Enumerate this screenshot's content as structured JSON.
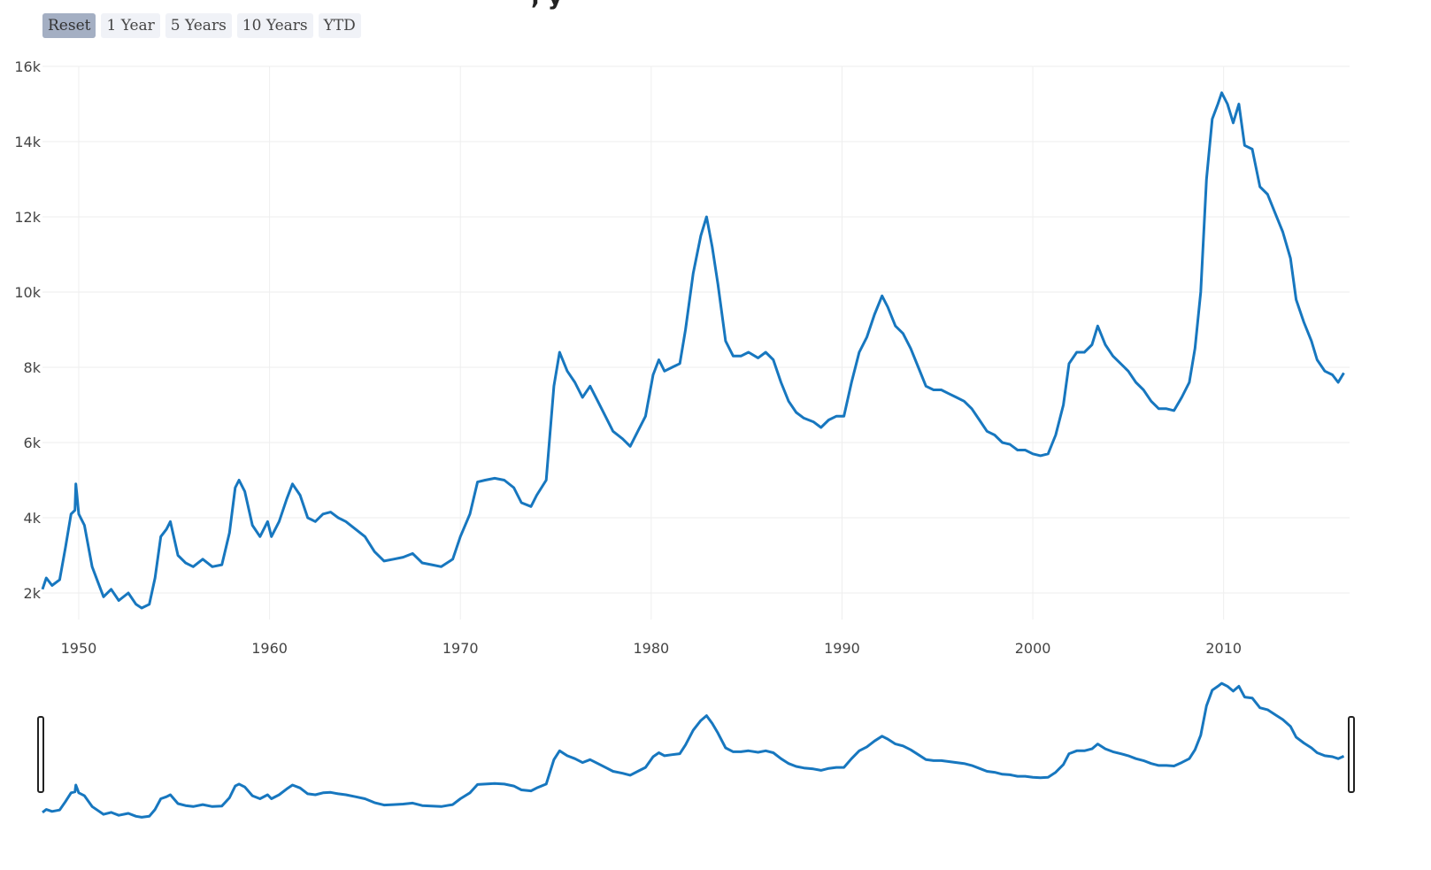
{
  "range_selector": {
    "buttons": [
      {
        "label": "Reset",
        "active": true
      },
      {
        "label": "1 Year",
        "active": false
      },
      {
        "label": "5 Years",
        "active": false
      },
      {
        "label": "10 Years",
        "active": false
      },
      {
        "label": "YTD",
        "active": false
      }
    ]
  },
  "title_fragment": ", y",
  "colors": {
    "line": "#1777bf",
    "grid": "#eeeeee",
    "tick_text": "#444444",
    "button_bg": "#f0f2f7",
    "button_active_bg": "#a4afc3"
  },
  "chart_data": {
    "type": "line",
    "title": "",
    "xlabel": "",
    "ylabel": "",
    "xlim": [
      1948.1,
      2016.6
    ],
    "ylim": [
      1000,
      16200
    ],
    "grid": true,
    "x_ticks": [
      1950,
      1960,
      1970,
      1980,
      1990,
      2000,
      2010
    ],
    "x_tick_labels": [
      "1950",
      "1960",
      "1970",
      "1980",
      "1990",
      "2000",
      "2010"
    ],
    "y_ticks": [
      2000,
      4000,
      6000,
      8000,
      10000,
      12000,
      14000,
      16000
    ],
    "y_tick_labels": [
      "2k",
      "4k",
      "6k",
      "8k",
      "10k",
      "12k",
      "14k",
      "16k"
    ],
    "range_slider": true,
    "series": [
      {
        "points": [
          [
            1948.1,
            2100
          ],
          [
            1948.3,
            2400
          ],
          [
            1948.6,
            2200
          ],
          [
            1949.0,
            2350
          ],
          [
            1949.3,
            3200
          ],
          [
            1949.6,
            4100
          ],
          [
            1949.8,
            4200
          ],
          [
            1949.85,
            4900
          ],
          [
            1950.0,
            4100
          ],
          [
            1950.3,
            3800
          ],
          [
            1950.7,
            2700
          ],
          [
            1951.0,
            2300
          ],
          [
            1951.3,
            1900
          ],
          [
            1951.7,
            2100
          ],
          [
            1952.1,
            1800
          ],
          [
            1952.6,
            2000
          ],
          [
            1953.0,
            1700
          ],
          [
            1953.3,
            1600
          ],
          [
            1953.7,
            1700
          ],
          [
            1954.0,
            2400
          ],
          [
            1954.3,
            3500
          ],
          [
            1954.6,
            3700
          ],
          [
            1954.8,
            3900
          ],
          [
            1955.2,
            3000
          ],
          [
            1955.6,
            2800
          ],
          [
            1956.0,
            2700
          ],
          [
            1956.5,
            2900
          ],
          [
            1957.0,
            2700
          ],
          [
            1957.5,
            2750
          ],
          [
            1957.9,
            3600
          ],
          [
            1958.2,
            4800
          ],
          [
            1958.4,
            5000
          ],
          [
            1958.7,
            4700
          ],
          [
            1959.1,
            3800
          ],
          [
            1959.5,
            3500
          ],
          [
            1959.9,
            3900
          ],
          [
            1960.1,
            3500
          ],
          [
            1960.5,
            3900
          ],
          [
            1960.9,
            4500
          ],
          [
            1961.2,
            4900
          ],
          [
            1961.6,
            4600
          ],
          [
            1962.0,
            4000
          ],
          [
            1962.4,
            3900
          ],
          [
            1962.8,
            4100
          ],
          [
            1963.2,
            4150
          ],
          [
            1963.6,
            4000
          ],
          [
            1964.0,
            3900
          ],
          [
            1964.5,
            3700
          ],
          [
            1965.0,
            3500
          ],
          [
            1965.5,
            3100
          ],
          [
            1966.0,
            2850
          ],
          [
            1966.5,
            2900
          ],
          [
            1967.0,
            2950
          ],
          [
            1967.5,
            3050
          ],
          [
            1968.0,
            2800
          ],
          [
            1968.5,
            2750
          ],
          [
            1969.0,
            2700
          ],
          [
            1969.6,
            2900
          ],
          [
            1970.0,
            3500
          ],
          [
            1970.5,
            4100
          ],
          [
            1970.9,
            4950
          ],
          [
            1971.3,
            5000
          ],
          [
            1971.8,
            5050
          ],
          [
            1972.3,
            5000
          ],
          [
            1972.8,
            4800
          ],
          [
            1973.2,
            4400
          ],
          [
            1973.7,
            4300
          ],
          [
            1974.0,
            4600
          ],
          [
            1974.5,
            5000
          ],
          [
            1974.9,
            7500
          ],
          [
            1975.2,
            8400
          ],
          [
            1975.6,
            7900
          ],
          [
            1976.0,
            7600
          ],
          [
            1976.4,
            7200
          ],
          [
            1976.8,
            7500
          ],
          [
            1977.2,
            7100
          ],
          [
            1977.6,
            6700
          ],
          [
            1978.0,
            6300
          ],
          [
            1978.5,
            6100
          ],
          [
            1978.9,
            5900
          ],
          [
            1979.3,
            6300
          ],
          [
            1979.7,
            6700
          ],
          [
            1980.1,
            7800
          ],
          [
            1980.4,
            8200
          ],
          [
            1980.7,
            7900
          ],
          [
            1981.1,
            8000
          ],
          [
            1981.5,
            8100
          ],
          [
            1981.8,
            9000
          ],
          [
            1982.2,
            10500
          ],
          [
            1982.6,
            11500
          ],
          [
            1982.9,
            12000
          ],
          [
            1983.2,
            11200
          ],
          [
            1983.5,
            10200
          ],
          [
            1983.9,
            8700
          ],
          [
            1984.3,
            8300
          ],
          [
            1984.7,
            8300
          ],
          [
            1985.1,
            8400
          ],
          [
            1985.6,
            8250
          ],
          [
            1986.0,
            8400
          ],
          [
            1986.4,
            8200
          ],
          [
            1986.8,
            7600
          ],
          [
            1987.2,
            7100
          ],
          [
            1987.6,
            6800
          ],
          [
            1988.0,
            6650
          ],
          [
            1988.5,
            6550
          ],
          [
            1988.9,
            6400
          ],
          [
            1989.3,
            6600
          ],
          [
            1989.7,
            6700
          ],
          [
            1990.1,
            6700
          ],
          [
            1990.5,
            7600
          ],
          [
            1990.9,
            8400
          ],
          [
            1991.3,
            8800
          ],
          [
            1991.7,
            9400
          ],
          [
            1992.1,
            9900
          ],
          [
            1992.4,
            9600
          ],
          [
            1992.8,
            9100
          ],
          [
            1993.2,
            8900
          ],
          [
            1993.6,
            8500
          ],
          [
            1994.0,
            8000
          ],
          [
            1994.4,
            7500
          ],
          [
            1994.8,
            7400
          ],
          [
            1995.2,
            7400
          ],
          [
            1995.6,
            7300
          ],
          [
            1996.0,
            7200
          ],
          [
            1996.4,
            7100
          ],
          [
            1996.8,
            6900
          ],
          [
            1997.2,
            6600
          ],
          [
            1997.6,
            6300
          ],
          [
            1998.0,
            6200
          ],
          [
            1998.4,
            6000
          ],
          [
            1998.8,
            5950
          ],
          [
            1999.2,
            5800
          ],
          [
            1999.6,
            5800
          ],
          [
            2000.0,
            5700
          ],
          [
            2000.4,
            5650
          ],
          [
            2000.8,
            5700
          ],
          [
            2001.2,
            6200
          ],
          [
            2001.6,
            7000
          ],
          [
            2001.9,
            8100
          ],
          [
            2002.3,
            8400
          ],
          [
            2002.7,
            8400
          ],
          [
            2003.1,
            8600
          ],
          [
            2003.4,
            9100
          ],
          [
            2003.8,
            8600
          ],
          [
            2004.2,
            8300
          ],
          [
            2004.6,
            8100
          ],
          [
            2005.0,
            7900
          ],
          [
            2005.4,
            7600
          ],
          [
            2005.8,
            7400
          ],
          [
            2006.2,
            7100
          ],
          [
            2006.6,
            6900
          ],
          [
            2007.0,
            6900
          ],
          [
            2007.4,
            6850
          ],
          [
            2007.8,
            7200
          ],
          [
            2008.2,
            7600
          ],
          [
            2008.5,
            8500
          ],
          [
            2008.8,
            10000
          ],
          [
            2009.1,
            13000
          ],
          [
            2009.4,
            14600
          ],
          [
            2009.7,
            15000
          ],
          [
            2009.9,
            15300
          ],
          [
            2010.2,
            15000
          ],
          [
            2010.5,
            14500
          ],
          [
            2010.8,
            15000
          ],
          [
            2011.1,
            13900
          ],
          [
            2011.5,
            13800
          ],
          [
            2011.9,
            12800
          ],
          [
            2012.3,
            12600
          ],
          [
            2012.7,
            12100
          ],
          [
            2013.1,
            11600
          ],
          [
            2013.5,
            10900
          ],
          [
            2013.8,
            9800
          ],
          [
            2014.2,
            9200
          ],
          [
            2014.6,
            8700
          ],
          [
            2014.9,
            8200
          ],
          [
            2015.3,
            7900
          ],
          [
            2015.7,
            7800
          ],
          [
            2016.0,
            7600
          ],
          [
            2016.3,
            7850
          ]
        ]
      }
    ]
  }
}
